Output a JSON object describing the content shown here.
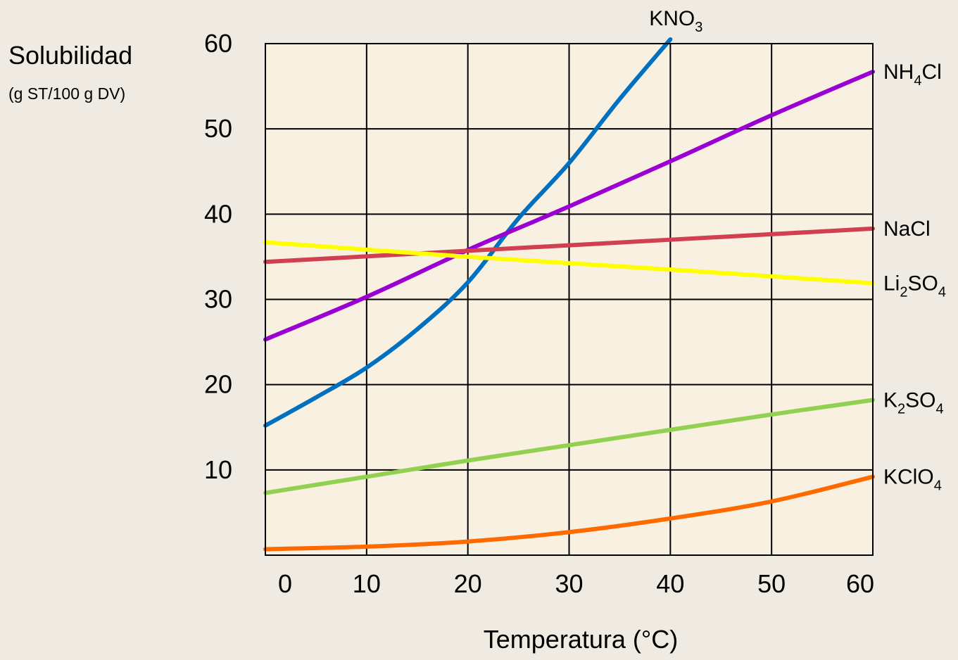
{
  "chart_data": {
    "type": "line",
    "title": "",
    "ylabel": "Solubilidad",
    "ylabel_unit": "(g ST/100 g DV)",
    "xlabel": "Temperatura (°C)",
    "xlim": [
      0,
      60
    ],
    "ylim": [
      0,
      60
    ],
    "x_ticks": [
      0,
      10,
      20,
      30,
      40,
      50,
      60
    ],
    "y_ticks": [
      10,
      20,
      30,
      40,
      50,
      60
    ],
    "grid": true,
    "legend": "labels at line ends, right side",
    "plot_background": "#f8f0e0",
    "series": [
      {
        "name": "KNO3",
        "label_main": "KNO",
        "label_sub": "3",
        "label_rest": "",
        "label_position": "top",
        "color": "#0070c0",
        "x": [
          0,
          5,
          10,
          15,
          20,
          25,
          30,
          35,
          40
        ],
        "y": [
          15.2,
          18.5,
          22.0,
          26.5,
          32.0,
          39.5,
          46.0,
          53.5,
          60.5
        ]
      },
      {
        "name": "NH4Cl",
        "label_main": "NH",
        "label_sub": "4",
        "label_rest": "Cl",
        "label_position": "right",
        "color": "#9b00d3",
        "x": [
          0,
          10,
          20,
          30,
          40,
          50,
          60
        ],
        "y": [
          25.3,
          30.3,
          35.8,
          40.9,
          46.2,
          51.6,
          56.7
        ]
      },
      {
        "name": "NaCl",
        "label_main": "NaCl",
        "label_sub": "",
        "label_rest": "",
        "label_position": "right",
        "color": "#d04050",
        "x": [
          0,
          20,
          40,
          60
        ],
        "y": [
          34.4,
          35.7,
          37.0,
          38.3
        ]
      },
      {
        "name": "Li2SO4",
        "label_main": "Li",
        "label_sub": "2",
        "label_rest": "SO",
        "label_sub2": "4",
        "label_position": "right",
        "color": "#ffff00",
        "x": [
          0,
          20,
          40,
          60
        ],
        "y": [
          36.7,
          35.0,
          33.5,
          31.9
        ]
      },
      {
        "name": "K2SO4",
        "label_main": "K",
        "label_sub": "2",
        "label_rest": "SO",
        "label_sub2": "4",
        "label_position": "right",
        "color": "#92d050",
        "x": [
          0,
          10,
          20,
          30,
          40,
          50,
          60
        ],
        "y": [
          7.3,
          9.2,
          11.1,
          12.9,
          14.7,
          16.5,
          18.2
        ]
      },
      {
        "name": "KClO4",
        "label_main": "KClO",
        "label_sub": "4",
        "label_rest": "",
        "label_position": "right",
        "color": "#ff6a00",
        "x": [
          0,
          10,
          20,
          30,
          40,
          50,
          60
        ],
        "y": [
          0.7,
          1.0,
          1.6,
          2.7,
          4.3,
          6.3,
          9.2
        ]
      }
    ]
  }
}
